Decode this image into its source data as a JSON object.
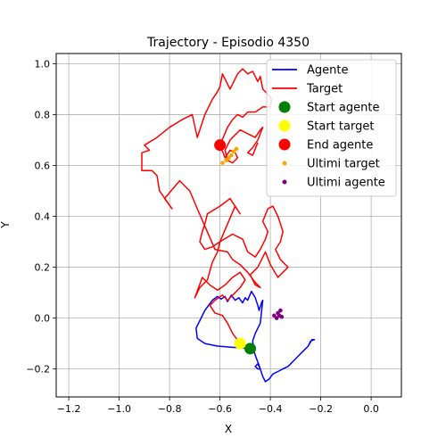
{
  "chart_data": {
    "type": "line",
    "title": "Trajectory - Episodio 4350",
    "xlabel": "X",
    "ylabel": "Y",
    "xlim": [
      -1.25,
      0.12
    ],
    "ylim": [
      -0.31,
      1.04
    ],
    "xticks": [
      -1.2,
      -1.0,
      -0.8,
      -0.6,
      -0.4,
      -0.2,
      0.0
    ],
    "xtick_labels": [
      "−1.2",
      "−1.0",
      "−0.8",
      "−0.6",
      "−0.4",
      "−0.2",
      "0.0"
    ],
    "yticks": [
      -0.2,
      0.0,
      0.2,
      0.4,
      0.6,
      0.8,
      1.0
    ],
    "ytick_labels": [
      "−0.2",
      "0.0",
      "0.2",
      "0.4",
      "0.6",
      "0.8",
      "1.0"
    ],
    "grid": true,
    "legend_position": "top-right",
    "series": [
      {
        "name": "Agente",
        "kind": "line",
        "color": "#0000ff",
        "points": [
          [
            -0.48,
            -0.12
          ],
          [
            -0.55,
            -0.115
          ],
          [
            -0.61,
            -0.11
          ],
          [
            -0.66,
            -0.1
          ],
          [
            -0.69,
            -0.08
          ],
          [
            -0.695,
            -0.04
          ],
          [
            -0.68,
            -0.01
          ],
          [
            -0.66,
            0.03
          ],
          [
            -0.63,
            0.07
          ],
          [
            -0.61,
            0.085
          ],
          [
            -0.595,
            0.075
          ],
          [
            -0.58,
            0.085
          ],
          [
            -0.57,
            0.065
          ],
          [
            -0.555,
            0.09
          ],
          [
            -0.54,
            0.07
          ],
          [
            -0.525,
            0.08
          ],
          [
            -0.51,
            0.06
          ],
          [
            -0.5,
            0.08
          ],
          [
            -0.49,
            0.07
          ],
          [
            -0.475,
            0.105
          ],
          [
            -0.46,
            0.08
          ],
          [
            -0.45,
            0.05
          ],
          [
            -0.445,
            0.03
          ],
          [
            -0.435,
            0.06
          ],
          [
            -0.43,
            0.07
          ],
          [
            -0.44,
            -0.02
          ],
          [
            -0.46,
            -0.06
          ],
          [
            -0.47,
            -0.09
          ],
          [
            -0.465,
            -0.13
          ],
          [
            -0.455,
            -0.16
          ],
          [
            -0.445,
            -0.185
          ],
          [
            -0.44,
            -0.2
          ],
          [
            -0.45,
            -0.2
          ],
          [
            -0.46,
            -0.19
          ],
          [
            -0.45,
            -0.18
          ],
          [
            -0.44,
            -0.2
          ],
          [
            -0.43,
            -0.23
          ],
          [
            -0.42,
            -0.25
          ],
          [
            -0.405,
            -0.24
          ],
          [
            -0.39,
            -0.22
          ],
          [
            -0.37,
            -0.21
          ],
          [
            -0.35,
            -0.2
          ],
          [
            -0.33,
            -0.19
          ],
          [
            -0.31,
            -0.17
          ],
          [
            -0.29,
            -0.15
          ],
          [
            -0.27,
            -0.13
          ],
          [
            -0.25,
            -0.11
          ],
          [
            -0.235,
            -0.085
          ],
          [
            -0.225,
            -0.085
          ],
          [
            -0.24,
            -0.09
          ],
          [
            -0.25,
            -0.11
          ]
        ]
      },
      {
        "name": "Target",
        "kind": "line",
        "color": "#ff0000",
        "points": [
          [
            -0.52,
            -0.1
          ],
          [
            -0.55,
            -0.06
          ],
          [
            -0.57,
            -0.02
          ],
          [
            -0.59,
            0.01
          ],
          [
            -0.62,
            0.02
          ],
          [
            -0.64,
            0.05
          ],
          [
            -0.62,
            0.07
          ],
          [
            -0.59,
            0.09
          ],
          [
            -0.57,
            0.07
          ],
          [
            -0.54,
            0.1
          ],
          [
            -0.52,
            0.12
          ],
          [
            -0.5,
            0.15
          ],
          [
            -0.52,
            0.18
          ],
          [
            -0.55,
            0.16
          ],
          [
            -0.58,
            0.13
          ],
          [
            -0.61,
            0.11
          ],
          [
            -0.64,
            0.13
          ],
          [
            -0.67,
            0.16
          ],
          [
            -0.7,
            0.08
          ],
          [
            -0.68,
            0.12
          ],
          [
            -0.65,
            0.15
          ],
          [
            -0.63,
            0.22
          ],
          [
            -0.61,
            0.26
          ],
          [
            -0.6,
            0.3
          ],
          [
            -0.63,
            0.28
          ],
          [
            -0.66,
            0.27
          ],
          [
            -0.68,
            0.3
          ],
          [
            -0.67,
            0.34
          ],
          [
            -0.66,
            0.37
          ],
          [
            -0.65,
            0.41
          ],
          [
            -0.6,
            0.44
          ],
          [
            -0.56,
            0.47
          ],
          [
            -0.52,
            0.41
          ],
          [
            -0.54,
            0.44
          ],
          [
            -0.57,
            0.37
          ],
          [
            -0.6,
            0.3
          ],
          [
            -0.55,
            0.33
          ],
          [
            -0.51,
            0.31
          ],
          [
            -0.49,
            0.26
          ],
          [
            -0.46,
            0.24
          ],
          [
            -0.44,
            0.27
          ],
          [
            -0.42,
            0.31
          ],
          [
            -0.41,
            0.34
          ],
          [
            -0.43,
            0.38
          ],
          [
            -0.41,
            0.43
          ],
          [
            -0.39,
            0.44
          ],
          [
            -0.37,
            0.4
          ],
          [
            -0.35,
            0.34
          ],
          [
            -0.36,
            0.3
          ],
          [
            -0.38,
            0.27
          ],
          [
            -0.36,
            0.23
          ],
          [
            -0.33,
            0.2
          ],
          [
            -0.35,
            0.18
          ],
          [
            -0.37,
            0.16
          ],
          [
            -0.4,
            0.21
          ],
          [
            -0.42,
            0.26
          ],
          [
            -0.45,
            0.2
          ],
          [
            -0.48,
            0.17
          ],
          [
            -0.46,
            0.13
          ],
          [
            -0.44,
            0.12
          ],
          [
            -0.46,
            0.14
          ],
          [
            -0.49,
            0.18
          ],
          [
            -0.52,
            0.21
          ],
          [
            -0.55,
            0.23
          ],
          [
            -0.57,
            0.26
          ],
          [
            -0.62,
            0.27
          ],
          [
            -0.69,
            0.43
          ],
          [
            -0.72,
            0.5
          ],
          [
            -0.76,
            0.54
          ],
          [
            -0.82,
            0.47
          ],
          [
            -0.79,
            0.43
          ],
          [
            -0.84,
            0.5
          ],
          [
            -0.85,
            0.56
          ],
          [
            -0.87,
            0.58
          ],
          [
            -0.91,
            0.58
          ],
          [
            -0.91,
            0.65
          ],
          [
            -0.88,
            0.66
          ],
          [
            -0.9,
            0.68
          ],
          [
            -0.85,
            0.71
          ],
          [
            -0.8,
            0.75
          ],
          [
            -0.75,
            0.78
          ],
          [
            -0.71,
            0.8
          ],
          [
            -0.69,
            0.71
          ],
          [
            -0.66,
            0.8
          ],
          [
            -0.63,
            0.86
          ],
          [
            -0.61,
            0.89
          ],
          [
            -0.6,
            0.91
          ],
          [
            -0.59,
            0.96
          ],
          [
            -0.56,
            0.9
          ],
          [
            -0.53,
            0.96
          ],
          [
            -0.51,
            0.98
          ],
          [
            -0.49,
            0.96
          ],
          [
            -0.47,
            0.97
          ],
          [
            -0.45,
            0.93
          ],
          [
            -0.44,
            0.95
          ],
          [
            -0.43,
            0.9
          ],
          [
            -0.41,
            0.88
          ],
          [
            -0.395,
            0.86
          ],
          [
            -0.4,
            0.83
          ],
          [
            -0.43,
            0.83
          ],
          [
            -0.46,
            0.81
          ],
          [
            -0.49,
            0.81
          ],
          [
            -0.51,
            0.79
          ],
          [
            -0.53,
            0.8
          ],
          [
            -0.55,
            0.78
          ],
          [
            -0.57,
            0.75
          ],
          [
            -0.6,
            0.68
          ],
          [
            -0.58,
            0.63
          ],
          [
            -0.56,
            0.66
          ],
          [
            -0.54,
            0.65
          ],
          [
            -0.53,
            0.63
          ],
          [
            -0.55,
            0.61
          ],
          [
            -0.57,
            0.62
          ],
          [
            -0.58,
            0.66
          ],
          [
            -0.56,
            0.7
          ],
          [
            -0.54,
            0.72
          ],
          [
            -0.52,
            0.74
          ],
          [
            -0.5,
            0.73
          ],
          [
            -0.48,
            0.72
          ],
          [
            -0.46,
            0.71
          ],
          [
            -0.44,
            0.74
          ],
          [
            -0.43,
            0.75
          ],
          [
            -0.45,
            0.7
          ],
          [
            -0.47,
            0.67
          ],
          [
            -0.49,
            0.65
          ],
          [
            -0.47,
            0.64
          ],
          [
            -0.45,
            0.69
          ]
        ]
      },
      {
        "name": "Start agente",
        "kind": "marker",
        "color": "#008000",
        "points": [
          [
            -0.48,
            -0.12
          ]
        ]
      },
      {
        "name": "Start target",
        "kind": "marker",
        "color": "#ffff00",
        "points": [
          [
            -0.52,
            -0.1
          ]
        ]
      },
      {
        "name": "End agente",
        "kind": "marker",
        "color": "#ff0000",
        "points": [
          [
            -0.6,
            0.68
          ]
        ]
      },
      {
        "name": "Ultimi target",
        "kind": "scatter",
        "color": "#ffa500",
        "points": [
          [
            -0.59,
            0.61
          ],
          [
            -0.575,
            0.62
          ],
          [
            -0.565,
            0.63
          ],
          [
            -0.555,
            0.64
          ],
          [
            -0.545,
            0.655
          ],
          [
            -0.535,
            0.665
          ]
        ]
      },
      {
        "name": "Ultimi agente",
        "kind": "scatter",
        "color": "#800080",
        "points": [
          [
            -0.385,
            0.01
          ],
          [
            -0.375,
            0.0
          ],
          [
            -0.37,
            0.02
          ],
          [
            -0.365,
            0.01
          ],
          [
            -0.36,
            0.03
          ],
          [
            -0.355,
            0.005
          ]
        ]
      }
    ]
  }
}
